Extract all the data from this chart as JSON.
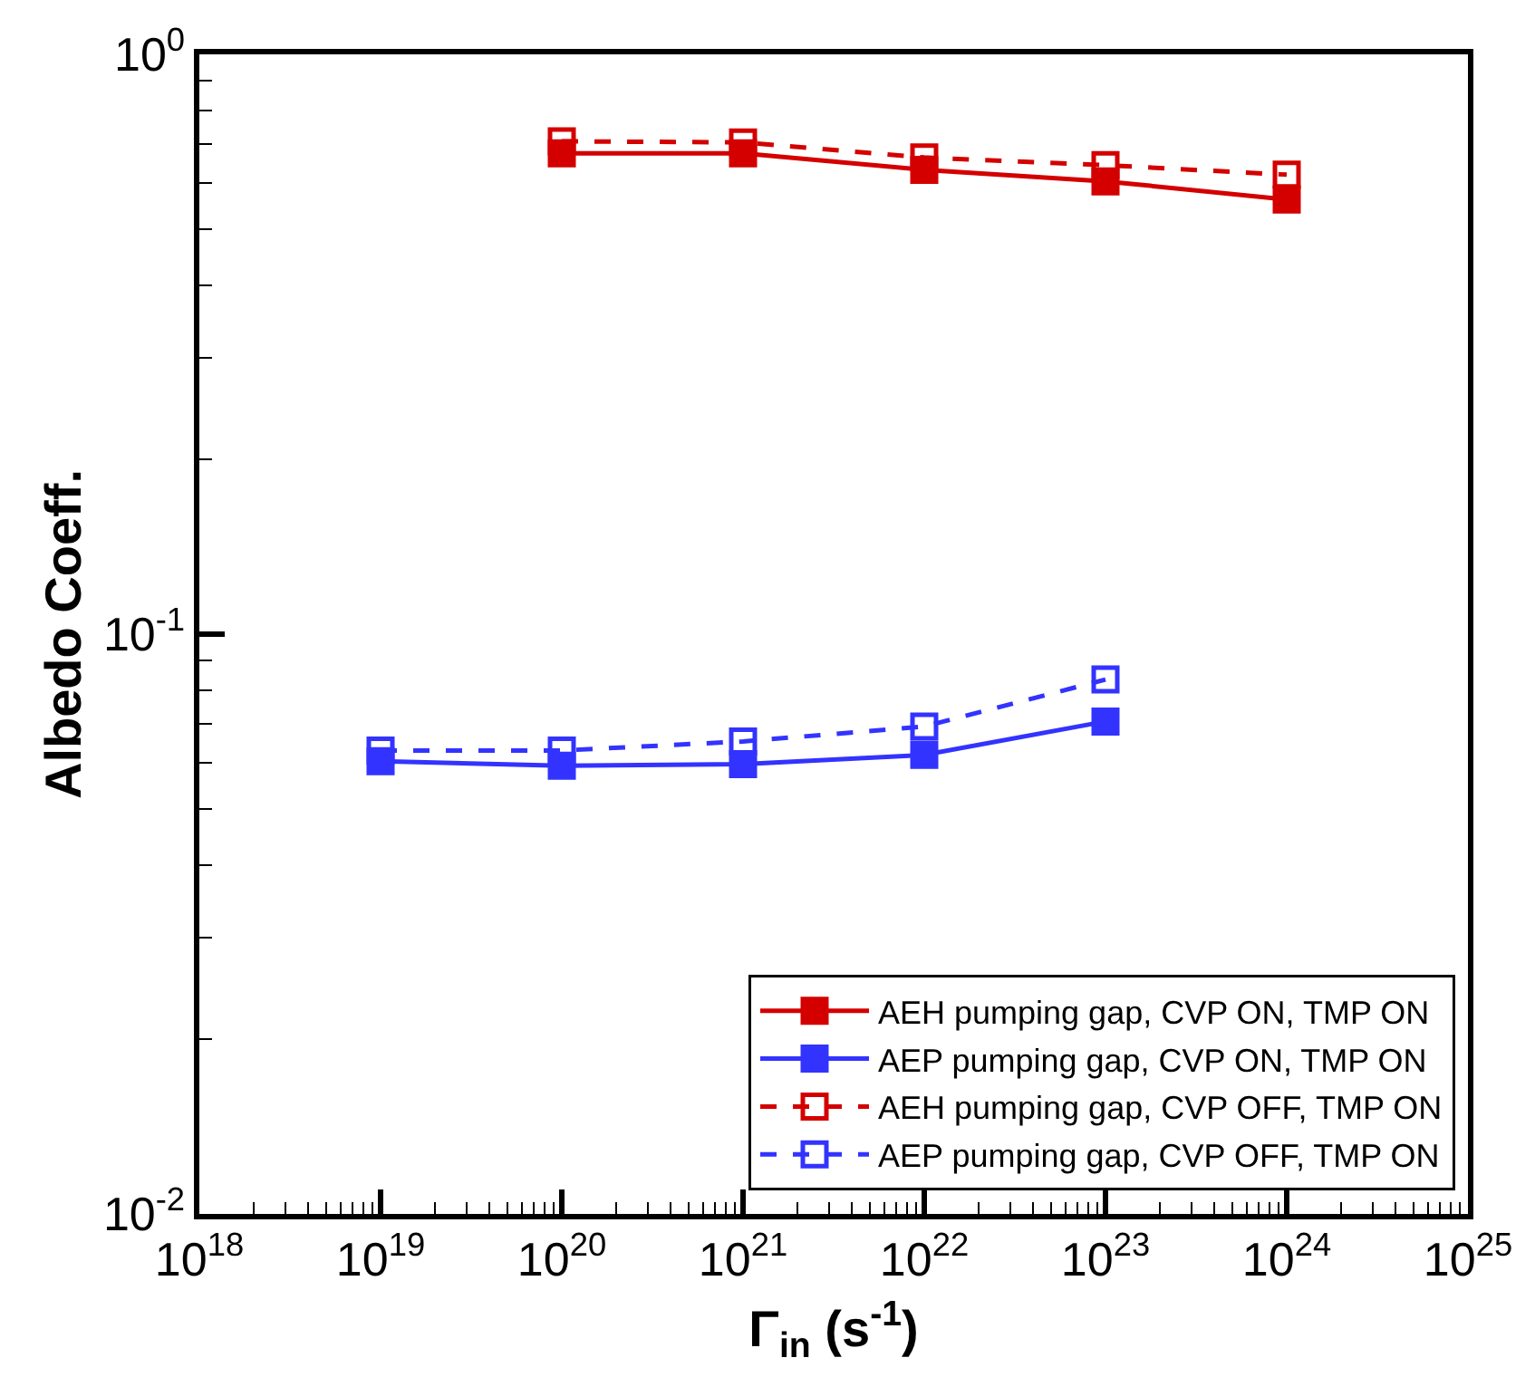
{
  "chart_data": {
    "type": "line",
    "ylabel": "Albedo Coeff.",
    "xlabel": "Γ$_{in}$ (s$^{-1}$)",
    "log": "xy",
    "marker": "square",
    "legend": "bottom right",
    "xlim": [
      1e+18,
      1e+25
    ],
    "ylim": [
      0.01,
      1
    ],
    "xticks": [
      {
        "value": 1e+18,
        "label": "10$^{18}$"
      },
      {
        "value": 1e+19,
        "label": "10$^{19}$"
      },
      {
        "value": 1e+20,
        "label": "10$^{20}$"
      },
      {
        "value": 1e+21,
        "label": "10$^{21}$"
      },
      {
        "value": 1e+22,
        "label": "10$^{22}$"
      },
      {
        "value": 1e+23,
        "label": "10$^{23}$"
      },
      {
        "value": 1e+24,
        "label": "10$^{24}$"
      },
      {
        "value": 1e+25,
        "label": "10$^{25}$"
      }
    ],
    "yticks": [
      {
        "value": 0.01,
        "label": "10$^{-2}$"
      },
      {
        "value": 0.1,
        "label": "10$^{-1}$"
      },
      {
        "value": 1,
        "label": "10$^{0}$"
      }
    ],
    "series": [
      {
        "name": "AEH pumping gap, CVP ON, TMP ON",
        "color": "#d40000",
        "line_style": "solid",
        "x": [
          1e+20,
          1e+21,
          1e+22,
          1e+23,
          1e+24
        ],
        "values": [
          0.675,
          0.675,
          0.632,
          0.604,
          0.562
        ]
      },
      {
        "name": "AEP pumping gap, CVP ON, TMP ON",
        "color": "#3333ff",
        "line_style": "solid",
        "x": [
          1e+19,
          1e+20,
          1e+21,
          1e+22,
          1e+23
        ],
        "values": [
          0.0604,
          0.0593,
          0.0597,
          0.0619,
          0.0707
        ]
      },
      {
        "name": "AEH pumping gap, CVP OFF, TMP ON",
        "color": "#d40000",
        "line_style": "dashed",
        "x": [
          1e+20,
          1e+21,
          1e+22,
          1e+23,
          1e+24
        ],
        "values": [
          0.708,
          0.705,
          0.664,
          0.644,
          0.62
        ]
      },
      {
        "name": "AEP pumping gap, CVP OFF, TMP ON",
        "color": "#3333ff",
        "line_style": "dashed",
        "x": [
          1e+19,
          1e+20,
          1e+21,
          1e+22,
          1e+23
        ],
        "values": [
          0.063,
          0.063,
          0.0653,
          0.0693,
          0.0835
        ]
      }
    ]
  }
}
